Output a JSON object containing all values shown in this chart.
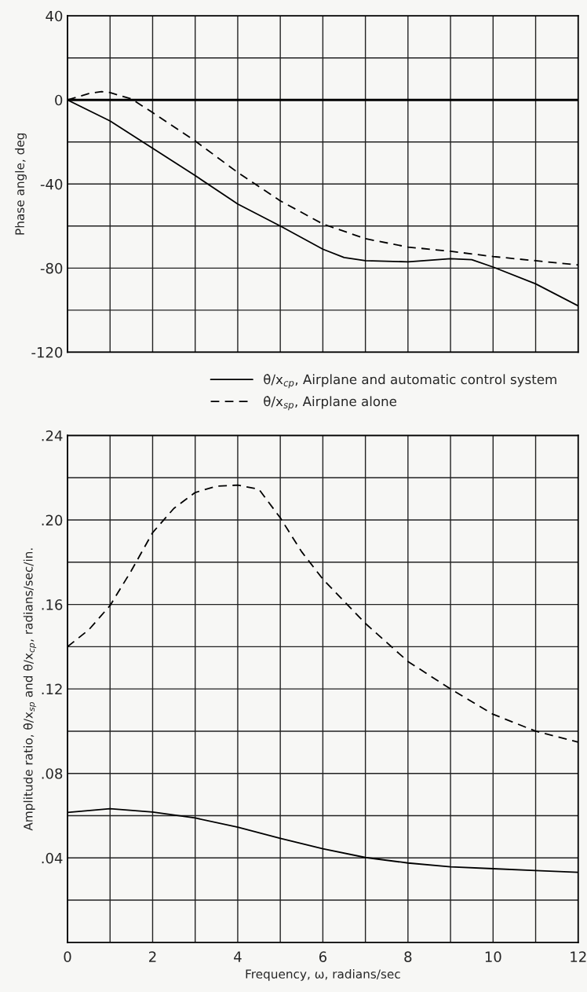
{
  "chart_data": [
    {
      "type": "line",
      "ylabel": "Phase angle, deg",
      "xlim": [
        0,
        12
      ],
      "ylim": [
        -120,
        40
      ],
      "xticks": [
        0,
        1,
        2,
        3,
        4,
        5,
        6,
        7,
        8,
        9,
        10,
        11,
        12
      ],
      "yticks": [
        40,
        {
          "value": 20,
          "label": null
        },
        0,
        {
          "value": -20,
          "label": null
        },
        -40,
        {
          "value": -60,
          "label": null
        },
        -80,
        {
          "value": -100,
          "label": null
        },
        -120
      ],
      "tick_labels": "y",
      "grid": true,
      "legend": "bottom",
      "marker": "none",
      "ref_lines": [
        {
          "axis": "y",
          "value": 0,
          "color": "#000000"
        }
      ],
      "series": [
        {
          "name": "θ̇/x$_{cp}$, Airplane and automatic control system",
          "color": "#000000",
          "line_style": "solid",
          "x": [
            0,
            1,
            2,
            3,
            4,
            5,
            6,
            6.5,
            7,
            8,
            9,
            9.5,
            10,
            11,
            12
          ],
          "values": [
            0,
            -10,
            -23,
            -36,
            -49.5,
            -60,
            -71,
            -75,
            -76.5,
            -77,
            -75.5,
            -76,
            -79.5,
            -87.5,
            -98
          ]
        },
        {
          "name": "θ̇/x$_{sp}$, Airplane alone",
          "color": "#000000",
          "line_style": "dashed",
          "x": [
            0,
            0.5,
            0.8,
            1,
            1.5,
            2,
            3,
            4,
            5,
            6,
            7,
            8,
            9,
            10,
            11,
            12
          ],
          "values": [
            0,
            3,
            4,
            3.5,
            0.5,
            -6,
            -19.5,
            -34.5,
            -48,
            -59,
            -66,
            -70,
            -72,
            -74.5,
            -76.5,
            -78.5
          ]
        }
      ]
    },
    {
      "type": "line",
      "xlabel": "Frequency, ω, radians/sec",
      "ylabel": "Amplitude ratio, θ̇/x$_{sp}$ and θ̇/x$_{cp}$, radians/sec/in.",
      "xlim": [
        0,
        12
      ],
      "ylim": [
        0,
        0.24
      ],
      "xticks": [
        0,
        {
          "value": 1,
          "label": null
        },
        2,
        {
          "value": 3,
          "label": null
        },
        4,
        {
          "value": 5,
          "label": null
        },
        6,
        {
          "value": 7,
          "label": null
        },
        8,
        {
          "value": 9,
          "label": null
        },
        10,
        {
          "value": 11,
          "label": null
        },
        12
      ],
      "yticks": [
        {
          "value": 0,
          "label": null
        },
        {
          "value": 0.02,
          "label": null
        },
        {
          "value": 0.04,
          "label": ".04"
        },
        {
          "value": 0.06,
          "label": null
        },
        {
          "value": 0.08,
          "label": ".08"
        },
        {
          "value": 0.1,
          "label": null
        },
        {
          "value": 0.12,
          "label": ".12"
        },
        {
          "value": 0.14,
          "label": null
        },
        {
          "value": 0.16,
          "label": ".16"
        },
        {
          "value": 0.18,
          "label": null
        },
        {
          "value": 0.2,
          "label": ".20"
        },
        {
          "value": 0.22,
          "label": null
        },
        {
          "value": 0.24,
          "label": ".24"
        }
      ],
      "grid": true,
      "marker": "none",
      "series": [
        {
          "color": "#000000",
          "line_style": "solid",
          "x": [
            0,
            1,
            2,
            3,
            4,
            5,
            6,
            7,
            8,
            9,
            10,
            11,
            12
          ],
          "values": [
            0.0615,
            0.0633,
            0.0617,
            0.0589,
            0.0546,
            0.0493,
            0.0443,
            0.0402,
            0.0376,
            0.0358,
            0.0349,
            0.034,
            0.0332
          ]
        },
        {
          "color": "#000000",
          "line_style": "dashed",
          "x": [
            0,
            0.5,
            1,
            1.5,
            2,
            2.5,
            3,
            3.5,
            4,
            4.5,
            5,
            5.5,
            6,
            7,
            8,
            9,
            10,
            11,
            12
          ],
          "values": [
            0.14,
            0.148,
            0.1595,
            0.176,
            0.194,
            0.2055,
            0.213,
            0.216,
            0.2165,
            0.2145,
            0.201,
            0.185,
            0.172,
            0.151,
            0.133,
            0.12,
            0.108,
            0.1,
            0.0948
          ]
        }
      ]
    }
  ]
}
